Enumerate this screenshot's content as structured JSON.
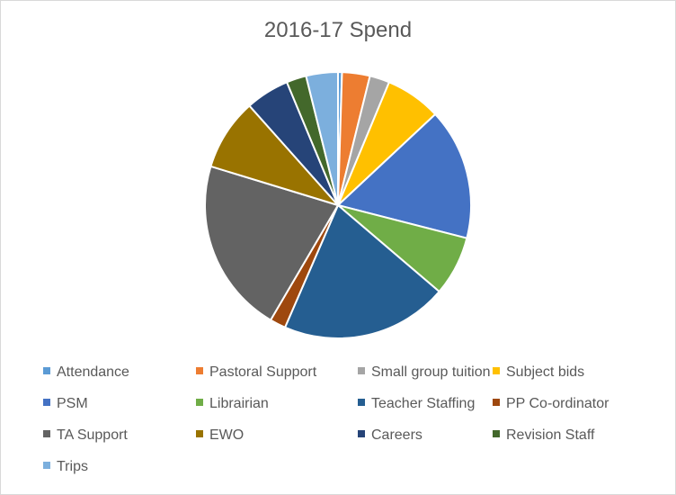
{
  "chart_data": {
    "type": "pie",
    "title": "2016-17 Spend",
    "legend_position": "bottom",
    "categories": [
      "Attendance",
      "Pastoral Support",
      "Small group tuition",
      "Subject bids",
      "PSM",
      "Librairian",
      "Teacher Staffing",
      "PP Co-ordinator",
      "TA Support",
      "EWO",
      "Careers",
      "Revision Staff",
      "Trips"
    ],
    "values": [
      0.5,
      3.5,
      2.5,
      7,
      16.5,
      7.5,
      21,
      2,
      22,
      9,
      5.5,
      2.5,
      4
    ],
    "colors": [
      "#5B9BD5",
      "#ED7D31",
      "#A5A5A5",
      "#FFC000",
      "#4472C4",
      "#70AD47",
      "#255E91",
      "#9E480E",
      "#636363",
      "#997300",
      "#264478",
      "#43682B",
      "#7CAFDD"
    ]
  }
}
